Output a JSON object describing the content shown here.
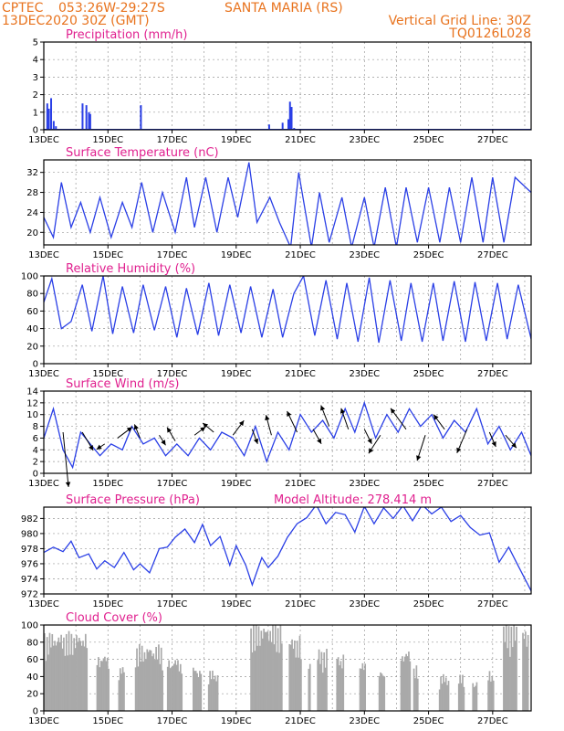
{
  "header": {
    "center": "CPTEC",
    "coords": "053:26W-29:27S",
    "station": "SANTA MARIA (RS)",
    "start": "13DEC2020 30Z (GMT)",
    "grid_note": "Vertical Grid Line: 30Z",
    "model_code": "TQ0126L028"
  },
  "colors": {
    "header": "#e8731e",
    "panel_title": "#e0208f",
    "series": "#2a3fe6",
    "cloud": "#a9a9a9",
    "grid": "#999999"
  },
  "x_axis": {
    "labels": [
      "13DEC",
      "15DEC",
      "17DEC",
      "19DEC",
      "21DEC",
      "23DEC",
      "25DEC",
      "27DEC"
    ],
    "start_day": 13,
    "end_day": 28.2
  },
  "chart_data": [
    {
      "type": "bar",
      "title": "Precipitation (mm/h)",
      "ylim": [
        0,
        5
      ],
      "yticks": [
        "0",
        "1",
        "2",
        "3",
        "4",
        "5"
      ],
      "x_unit": "day of December",
      "x": [
        13.08,
        13.13,
        13.2,
        13.28,
        13.35,
        14.18,
        14.3,
        14.38,
        14.42,
        16.0,
        20.0,
        20.42,
        20.6,
        20.65,
        20.7,
        20.78
      ],
      "values": [
        1.5,
        1.2,
        1.8,
        0.5,
        0.2,
        1.5,
        1.4,
        1.0,
        0.9,
        1.4,
        0.3,
        0.4,
        0.6,
        1.6,
        1.3,
        0.1
      ]
    },
    {
      "type": "line",
      "title": "Surface Temperature (nC)",
      "ylim": [
        17.5,
        34.5
      ],
      "yticks": [
        "20",
        "24",
        "28",
        "32"
      ],
      "x": [
        13,
        13.3,
        13.55,
        13.85,
        14.15,
        14.45,
        14.75,
        15.1,
        15.45,
        15.75,
        16.05,
        16.4,
        16.7,
        17.1,
        17.45,
        17.7,
        18.05,
        18.4,
        18.75,
        19.05,
        19.4,
        19.65,
        20.05,
        20.35,
        20.7,
        20.95,
        21.35,
        21.6,
        21.9,
        22.3,
        22.6,
        23.0,
        23.3,
        23.65,
        24.0,
        24.3,
        24.65,
        25.0,
        25.35,
        25.65,
        26.0,
        26.35,
        26.7,
        27.0,
        27.35,
        27.7,
        28.2
      ],
      "values": [
        23,
        19,
        30,
        21,
        26,
        20,
        27,
        19,
        26,
        21,
        30,
        20,
        28,
        20,
        31,
        21,
        31,
        20,
        31,
        23,
        34,
        22,
        27,
        22,
        17,
        32,
        17,
        28,
        18,
        27,
        17,
        27,
        17,
        29,
        17,
        29,
        18,
        29,
        18,
        29,
        18,
        31,
        18,
        31,
        18,
        31,
        28
      ]
    },
    {
      "type": "line",
      "title": "Relative Humidity (%)",
      "ylim": [
        0,
        100
      ],
      "yticks": [
        "0",
        "20",
        "40",
        "60",
        "80",
        "100"
      ],
      "x": [
        13,
        13.25,
        13.55,
        13.85,
        14.2,
        14.5,
        14.85,
        15.15,
        15.45,
        15.8,
        16.1,
        16.45,
        16.8,
        17.15,
        17.45,
        17.8,
        18.15,
        18.45,
        18.8,
        19.15,
        19.45,
        19.8,
        20.15,
        20.45,
        20.8,
        21.1,
        21.45,
        21.8,
        22.15,
        22.45,
        22.8,
        23.15,
        23.45,
        23.8,
        24.15,
        24.45,
        24.8,
        25.15,
        25.45,
        25.8,
        26.15,
        26.45,
        26.8,
        27.15,
        27.45,
        27.8,
        28.2
      ],
      "values": [
        70,
        97,
        40,
        48,
        90,
        37,
        100,
        34,
        88,
        35,
        90,
        38,
        88,
        30,
        86,
        33,
        92,
        32,
        90,
        35,
        88,
        30,
        85,
        30,
        80,
        100,
        32,
        95,
        28,
        92,
        25,
        98,
        24,
        95,
        26,
        92,
        25,
        92,
        26,
        94,
        25,
        93,
        26,
        92,
        28,
        90,
        28
      ]
    },
    {
      "type": "line",
      "title": "Surface Wind (m/s)",
      "ylim": [
        0,
        14
      ],
      "yticks": [
        "0",
        "2",
        "4",
        "6",
        "8",
        "10",
        "12",
        "14"
      ],
      "x": [
        13,
        13.3,
        13.6,
        13.9,
        14.15,
        14.45,
        14.75,
        15.1,
        15.45,
        15.75,
        16.1,
        16.45,
        16.8,
        17.15,
        17.5,
        17.85,
        18.2,
        18.55,
        18.9,
        19.25,
        19.6,
        19.95,
        20.3,
        20.65,
        21.0,
        21.35,
        21.7,
        22.05,
        22.4,
        22.7,
        23.0,
        23.35,
        23.7,
        24.05,
        24.4,
        24.75,
        25.1,
        25.45,
        25.8,
        26.15,
        26.5,
        26.85,
        27.2,
        27.55,
        27.9,
        28.2
      ],
      "values": [
        6,
        11,
        4,
        1,
        7,
        5,
        3,
        5,
        4,
        8,
        5,
        6,
        3,
        5,
        3,
        6,
        4,
        7,
        6,
        3,
        8,
        2,
        7,
        4,
        10,
        7,
        9,
        6,
        11,
        7,
        12,
        6,
        10,
        7,
        11,
        8,
        10,
        6,
        9,
        7,
        11,
        5,
        8,
        4,
        7,
        3
      ],
      "vectors": [
        {
          "x": 13.6,
          "y": 7,
          "u": 0.6,
          "v": -6
        },
        {
          "x": 14.2,
          "y": 7,
          "u": 1.2,
          "v": -2
        },
        {
          "x": 14.9,
          "y": 5,
          "u": -0.9,
          "v": -0.6
        },
        {
          "x": 15.3,
          "y": 6,
          "u": 1.6,
          "v": 1.2
        },
        {
          "x": 16.0,
          "y": 6,
          "u": -0.6,
          "v": 1.5
        },
        {
          "x": 16.6,
          "y": 6.5,
          "u": 0.7,
          "v": -1.1
        },
        {
          "x": 17.1,
          "y": 5.5,
          "u": -0.9,
          "v": 1.5
        },
        {
          "x": 17.7,
          "y": 6.5,
          "u": 1.2,
          "v": 0.9
        },
        {
          "x": 18.3,
          "y": 7,
          "u": -1.2,
          "v": 1
        },
        {
          "x": 18.9,
          "y": 6.5,
          "u": 1.2,
          "v": 1.6
        },
        {
          "x": 19.5,
          "y": 7.5,
          "u": 0.6,
          "v": -1.6
        },
        {
          "x": 20.1,
          "y": 6.5,
          "u": -0.6,
          "v": 2.2
        },
        {
          "x": 20.9,
          "y": 7,
          "u": -1.1,
          "v": 2.3
        },
        {
          "x": 21.4,
          "y": 7.5,
          "u": 0.9,
          "v": -1.6
        },
        {
          "x": 21.9,
          "y": 8,
          "u": -0.9,
          "v": 2.3
        },
        {
          "x": 22.5,
          "y": 7.5,
          "u": -0.8,
          "v": 2.3
        },
        {
          "x": 23.0,
          "y": 7.5,
          "u": 0.8,
          "v": -1.6
        },
        {
          "x": 23.5,
          "y": 6.5,
          "u": -1.3,
          "v": -2
        },
        {
          "x": 24.3,
          "y": 7.5,
          "u": -1.7,
          "v": 2.3
        },
        {
          "x": 24.9,
          "y": 6.5,
          "u": -0.9,
          "v": -2.8
        },
        {
          "x": 25.5,
          "y": 7.5,
          "u": -1.2,
          "v": 1.6
        },
        {
          "x": 26.2,
          "y": 7.5,
          "u": -1.1,
          "v": -2.6
        },
        {
          "x": 26.9,
          "y": 7,
          "u": 0.7,
          "v": -1.6
        },
        {
          "x": 27.4,
          "y": 6.5,
          "u": 1.2,
          "v": -1.4
        }
      ]
    },
    {
      "type": "line",
      "title": "Surface Pressure (hPa)",
      "annotation": "Model Altitude: 278.414 m",
      "ylim": [
        972,
        983.5
      ],
      "yticks": [
        "972",
        "974",
        "976",
        "978",
        "980",
        "982"
      ],
      "x": [
        13,
        13.3,
        13.6,
        13.85,
        14.1,
        14.4,
        14.65,
        14.9,
        15.2,
        15.5,
        15.8,
        16.0,
        16.3,
        16.6,
        16.85,
        17.1,
        17.4,
        17.7,
        17.95,
        18.2,
        18.5,
        18.8,
        19.0,
        19.3,
        19.5,
        19.8,
        20.0,
        20.3,
        20.6,
        20.9,
        21.2,
        21.5,
        21.8,
        22.1,
        22.4,
        22.7,
        23.0,
        23.3,
        23.6,
        23.9,
        24.2,
        24.5,
        24.8,
        25.1,
        25.4,
        25.7,
        26.0,
        26.3,
        26.6,
        26.9,
        27.2,
        27.5,
        27.8,
        28.2
      ],
      "values": [
        977.5,
        978.2,
        977.6,
        979,
        976.8,
        977.3,
        975.3,
        976.4,
        975.5,
        977.5,
        975.2,
        976,
        974.8,
        978,
        978.2,
        979.5,
        980.6,
        978.8,
        981.2,
        978.4,
        979.6,
        975.8,
        978.4,
        975.8,
        973.2,
        976.8,
        975.5,
        977,
        979.5,
        981.3,
        982.1,
        983.8,
        981.3,
        982.8,
        982.5,
        980.2,
        983.6,
        981.3,
        983.4,
        982,
        983.7,
        981.7,
        983.8,
        982.6,
        983.5,
        981.6,
        982.4,
        980.8,
        979.8,
        980.1,
        976.2,
        978.2,
        975.7,
        972.4
      ]
    },
    {
      "type": "bar",
      "title": "Cloud Cover (%)",
      "ylim": [
        0,
        100
      ],
      "yticks": [
        "0",
        "20",
        "40",
        "60",
        "80",
        "100"
      ]
    }
  ]
}
